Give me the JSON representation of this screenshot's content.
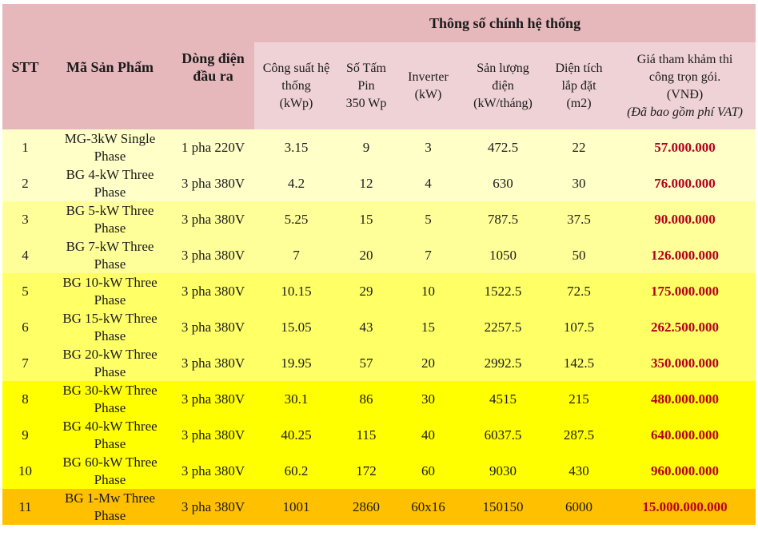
{
  "header": {
    "stt": "STT",
    "product": "Mã Sản Phẩm",
    "output": [
      "Dòng điện",
      "đầu ra"
    ],
    "group": "Thông số chính hệ thống",
    "capacity": [
      "Công suất hệ",
      "thống",
      "(kWp)"
    ],
    "panels": [
      "Số Tấm",
      "Pin",
      "350 Wp"
    ],
    "inverter": [
      "Inverter",
      "(kW)"
    ],
    "yield": [
      "Sản lượng",
      "điện",
      "(kW/tháng)"
    ],
    "area": [
      "Diện tích",
      "lắp đặt",
      "(m2)"
    ],
    "price": [
      "Giá tham khảm thi",
      "công trọn gói.",
      "(VNĐ)"
    ],
    "price_note": "(Đã bao gồm phí VAT)"
  },
  "row_colors": [
    "#ffffc8",
    "#ffffc8",
    "#ffff99",
    "#ffff99",
    "#ffff66",
    "#ffff66",
    "#ffff66",
    "#ffff00",
    "#ffff00",
    "#ffff00",
    "#ffc000"
  ],
  "rows": [
    {
      "stt": "1",
      "product": [
        "MG-3kW Single",
        "Phase"
      ],
      "output": "1 pha 220V",
      "capacity": "3.15",
      "panels": "9",
      "inverter": "3",
      "yield": "472.5",
      "area": "22",
      "price": "57.000.000"
    },
    {
      "stt": "2",
      "product": [
        "BG 4-kW Three",
        "Phase"
      ],
      "output": "3 pha 380V",
      "capacity": "4.2",
      "panels": "12",
      "inverter": "4",
      "yield": "630",
      "area": "30",
      "price": "76.000.000"
    },
    {
      "stt": "3",
      "product": [
        "BG 5-kW Three",
        "Phase"
      ],
      "output": "3 pha 380V",
      "capacity": "5.25",
      "panels": "15",
      "inverter": "5",
      "yield": "787.5",
      "area": "37.5",
      "price": "90.000.000"
    },
    {
      "stt": "4",
      "product": [
        "BG 7-kW Three",
        "Phase"
      ],
      "output": "3 pha 380V",
      "capacity": "7",
      "panels": "20",
      "inverter": "7",
      "yield": "1050",
      "area": "50",
      "price": "126.000.000"
    },
    {
      "stt": "5",
      "product": [
        "BG 10-kW Three",
        "Phase"
      ],
      "output": "3 pha 380V",
      "capacity": "10.15",
      "panels": "29",
      "inverter": "10",
      "yield": "1522.5",
      "area": "72.5",
      "price": "175.000.000"
    },
    {
      "stt": "6",
      "product": [
        "BG 15-kW Three",
        "Phase"
      ],
      "output": "3 pha 380V",
      "capacity": "15.05",
      "panels": "43",
      "inverter": "15",
      "yield": "2257.5",
      "area": "107.5",
      "price": "262.500.000"
    },
    {
      "stt": "7",
      "product": [
        "BG 20-kW Three",
        "Phase"
      ],
      "output": "3 pha 380V",
      "capacity": "19.95",
      "panels": "57",
      "inverter": "20",
      "yield": "2992.5",
      "area": "142.5",
      "price": "350.000.000"
    },
    {
      "stt": "8",
      "product": [
        "BG 30-kW Three",
        "Phase"
      ],
      "output": "3 pha 380V",
      "capacity": "30.1",
      "panels": "86",
      "inverter": "30",
      "yield": "4515",
      "area": "215",
      "price": "480.000.000"
    },
    {
      "stt": "9",
      "product": [
        "BG 40-kW Three",
        "Phase"
      ],
      "output": "3 pha 380V",
      "capacity": "40.25",
      "panels": "115",
      "inverter": "40",
      "yield": "6037.5",
      "area": "287.5",
      "price": "640.000.000"
    },
    {
      "stt": "10",
      "product": [
        "BG 60-kW Three",
        "Phase"
      ],
      "output": "3 pha 380V",
      "capacity": "60.2",
      "panels": "172",
      "inverter": "60",
      "yield": "9030",
      "area": "430",
      "price": "960.000.000"
    },
    {
      "stt": "11",
      "product": [
        "BG 1-Mw Three",
        "Phase"
      ],
      "output": "3 pha 380V",
      "capacity": "1001",
      "panels": "2860",
      "inverter": "60x16",
      "yield": "150150",
      "area": "6000",
      "price": "15.000.000.000"
    }
  ]
}
